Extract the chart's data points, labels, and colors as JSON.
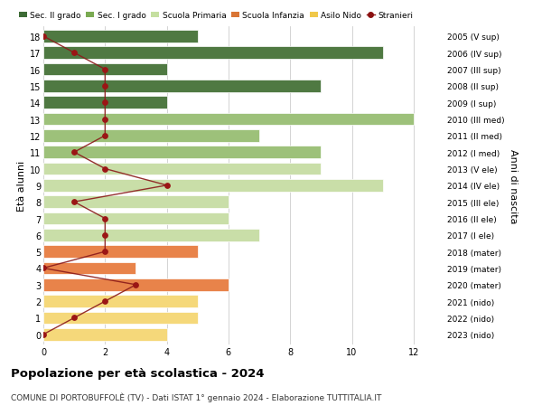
{
  "ages": [
    0,
    1,
    2,
    3,
    4,
    5,
    6,
    7,
    8,
    9,
    10,
    11,
    12,
    13,
    14,
    15,
    16,
    17,
    18
  ],
  "right_labels": [
    "2023 (nido)",
    "2022 (nido)",
    "2021 (nido)",
    "2020 (mater)",
    "2019 (mater)",
    "2018 (mater)",
    "2017 (I ele)",
    "2016 (II ele)",
    "2015 (III ele)",
    "2014 (IV ele)",
    "2013 (V ele)",
    "2012 (I med)",
    "2011 (II med)",
    "2010 (III med)",
    "2009 (I sup)",
    "2008 (II sup)",
    "2007 (III sup)",
    "2006 (IV sup)",
    "2005 (V sup)"
  ],
  "bar_values": [
    4,
    5,
    5,
    6,
    3,
    5,
    7,
    6,
    6,
    11,
    9,
    9,
    7,
    12,
    4,
    9,
    4,
    11,
    5
  ],
  "bar_colors": [
    "#f5d87a",
    "#f5d87a",
    "#f5d87a",
    "#e8834a",
    "#e8834a",
    "#e8834a",
    "#c9dea8",
    "#c9dea8",
    "#c9dea8",
    "#c9dea8",
    "#c9dea8",
    "#9dc17a",
    "#9dc17a",
    "#9dc17a",
    "#4f7942",
    "#4f7942",
    "#4f7942",
    "#4f7942",
    "#4f7942"
  ],
  "stranieri_values": [
    0,
    1,
    2,
    3,
    0,
    2,
    2,
    2,
    1,
    4,
    2,
    1,
    2,
    2,
    2,
    2,
    2,
    1,
    0
  ],
  "legend_labels": [
    "Sec. II grado",
    "Sec. I grado",
    "Scuola Primaria",
    "Scuola Infanzia",
    "Asilo Nido",
    "Stranieri"
  ],
  "legend_colors": [
    "#3d6b35",
    "#7aaa52",
    "#c5dfa0",
    "#d97535",
    "#f0c84a",
    "#8b1010"
  ],
  "title": "Popolazione per età scolastica - 2024",
  "subtitle": "COMUNE DI PORTOBUFFOLÈ (TV) - Dati ISTAT 1° gennaio 2024 - Elaborazione TUTTITALIA.IT",
  "ylabel": "Età alunni",
  "right_ylabel": "Anni di nascita",
  "xlim": [
    0,
    13
  ],
  "xticks": [
    0,
    2,
    4,
    6,
    8,
    10,
    12
  ],
  "bar_height": 0.75,
  "bg_color": "#ffffff",
  "grid_color": "#cccccc"
}
